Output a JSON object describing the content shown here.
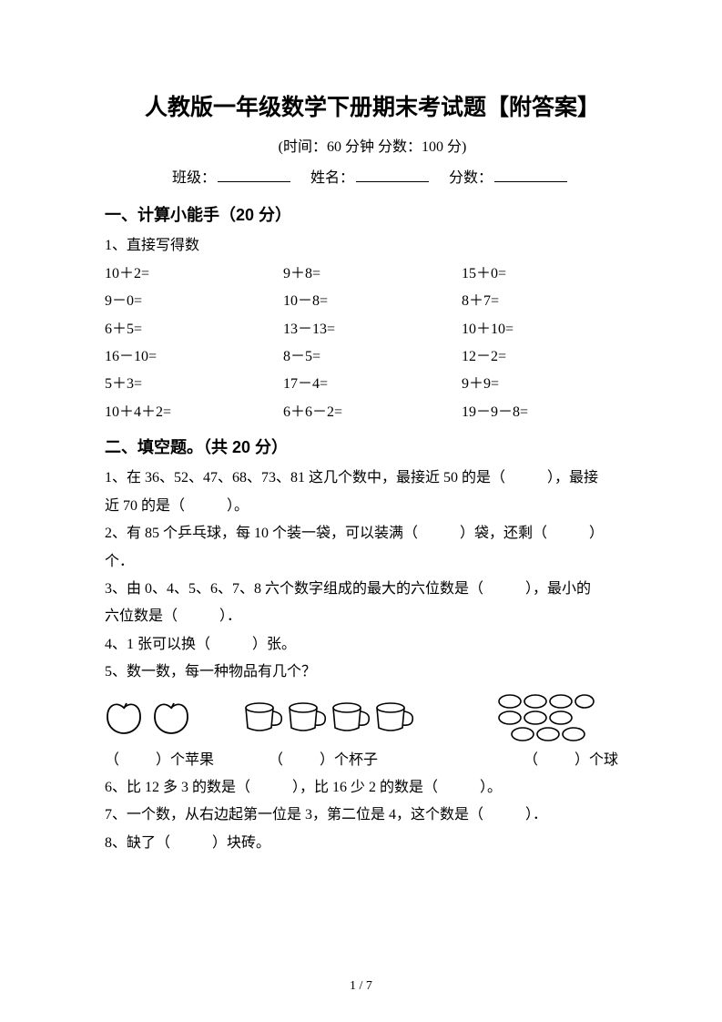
{
  "title": "人教版一年级数学下册期末考试题【附答案】",
  "subtitle": "(时间：60 分钟    分数：100 分)",
  "info": {
    "class": "班级：",
    "name": "姓名：",
    "score": "分数："
  },
  "section1": {
    "heading": "一、计算小能手（20 分）",
    "q1": "1、直接写得数"
  },
  "calc": [
    [
      "10＋2=",
      "9＋8=",
      "15＋0="
    ],
    [
      "9－0=",
      "10－8=",
      "8＋7="
    ],
    [
      "6＋5=",
      "13－13=",
      "10＋10="
    ],
    [
      "16－10=",
      "8－5=",
      "12－2="
    ],
    [
      "5＋3=",
      "17－4=",
      "9＋9="
    ],
    [
      "10＋4＋2=",
      "6＋6－2=",
      "19－9－8="
    ]
  ],
  "section2": {
    "heading": "二、填空题。（共 20 分）"
  },
  "q": {
    "q1a": "1、在 36、52、47、68、73、81 这几个数中，最接近 50 的是（",
    "q1b": "），最接",
    "q1c": "近 70 的是（",
    "q1d": "）。",
    "q2a": "2、有 85 个乒乓球，每 10 个装一袋，可以装满（",
    "q2b": "）袋，还剩（",
    "q2c": "）",
    "q2d": "个．",
    "q3a": "3、由 0、4、5、6、7、8 六个数字组成的最大的六位数是（",
    "q3b": "），最小的",
    "q3c": "六位数是（",
    "q3d": "）．",
    "q4a": "4、1 张可以换（",
    "q4b": "）张。",
    "q5": "5、数一数，每一种物品有几个？",
    "cap1a": "（",
    "cap1b": "）个苹果",
    "cap2a": "（",
    "cap2b": "）个杯子",
    "cap3a": "（",
    "cap3b": "）个球",
    "q6a": "6、比 12 多 3 的数是（",
    "q6b": "），比 16 少 2 的数是（",
    "q6c": "）。",
    "q7a": "7、一个数，从右边起第一位是 3，第二位是 4，这个数是（",
    "q7b": "）．",
    "q8a": "8、缺了（",
    "q8b": "）块砖。"
  },
  "footer": "1 / 7"
}
